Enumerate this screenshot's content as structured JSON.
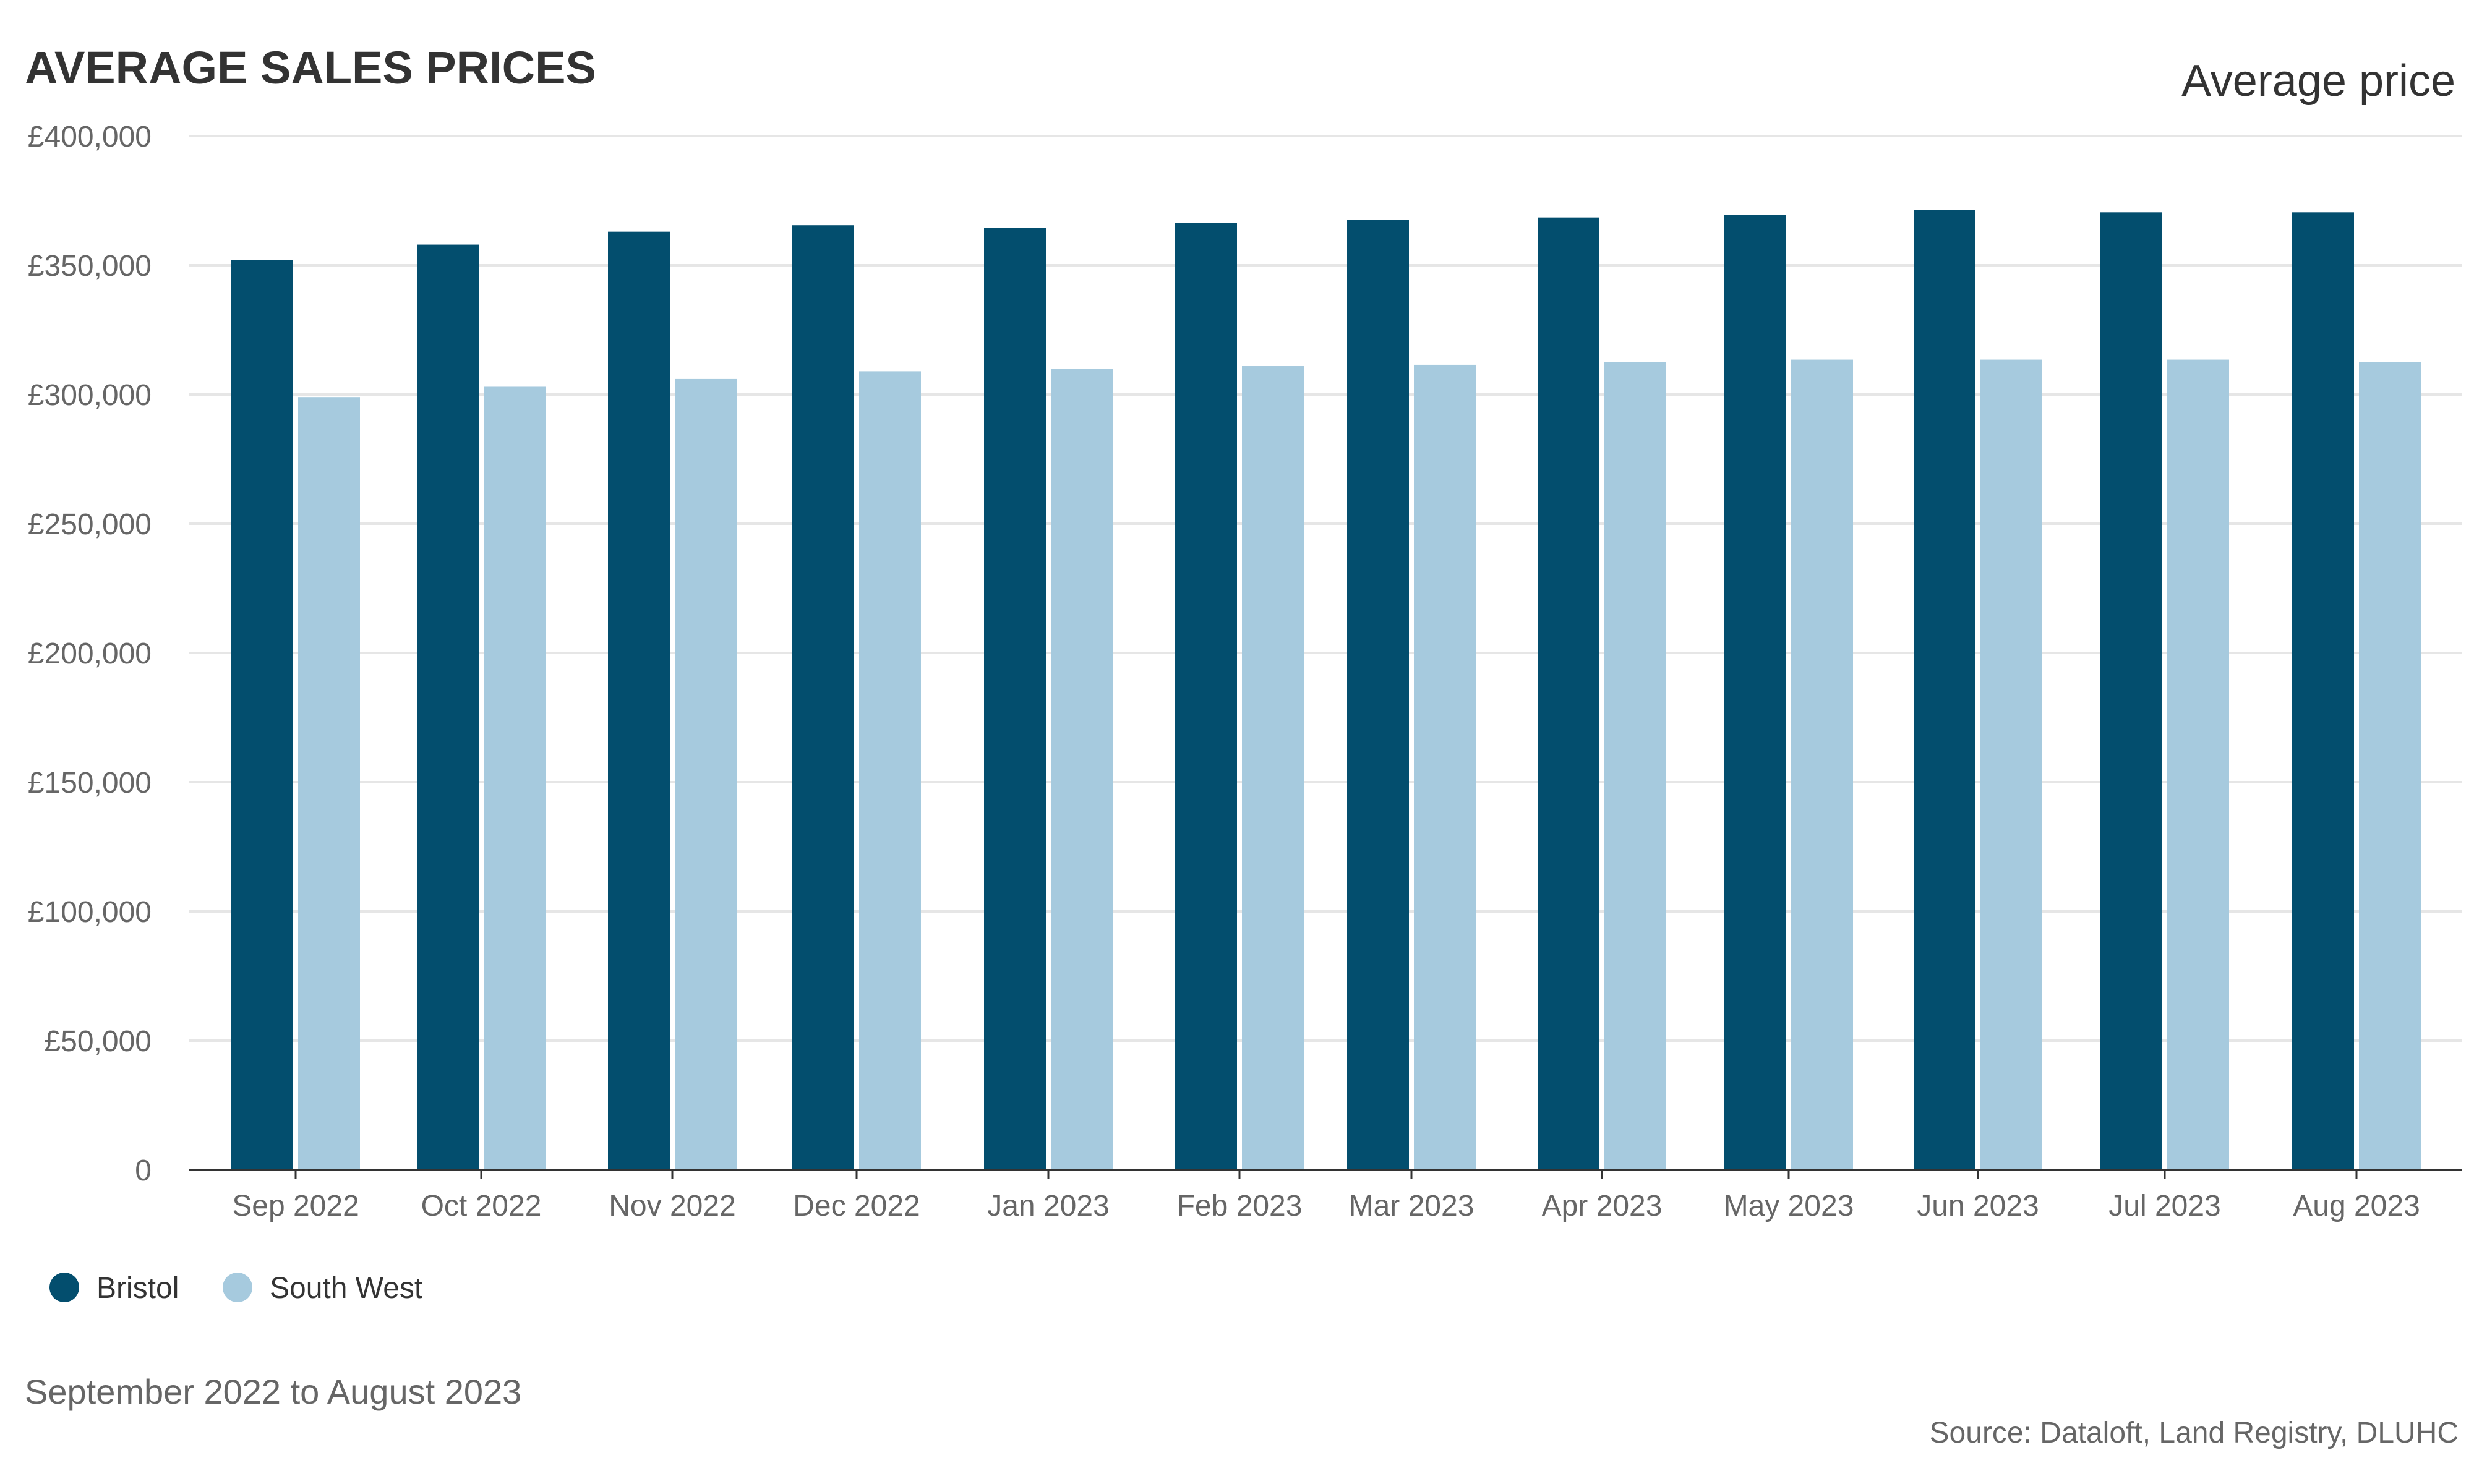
{
  "chart_data": {
    "type": "bar",
    "title": "AVERAGE SALES PRICES",
    "subtitle": "Average price",
    "caption": "September 2022 to August 2023",
    "source": "Source: Dataloft, Land Registry, DLUHC",
    "categories": [
      "Sep 2022",
      "Oct 2022",
      "Nov 2022",
      "Dec 2022",
      "Jan 2023",
      "Feb 2023",
      "Mar 2023",
      "Apr 2023",
      "May 2023",
      "Jun 2023",
      "Jul 2023",
      "Aug 2023"
    ],
    "series": [
      {
        "name": "Bristol",
        "color": "#034e6e",
        "values": [
          352000,
          358000,
          363000,
          365500,
          364500,
          366500,
          367500,
          368500,
          369500,
          371500,
          370500,
          370500
        ]
      },
      {
        "name": "South West",
        "color": "#a6cade",
        "values": [
          299000,
          303000,
          306000,
          309000,
          310000,
          311000,
          311500,
          312500,
          313500,
          313500,
          313500,
          312500
        ]
      }
    ],
    "ylim": [
      0,
      400000
    ],
    "yticks": [
      0,
      50000,
      100000,
      150000,
      200000,
      250000,
      300000,
      350000,
      400000
    ],
    "ytick_labels": [
      "0",
      "£50,000",
      "£100,000",
      "£150,000",
      "£200,000",
      "£250,000",
      "£300,000",
      "£350,000",
      "£400,000"
    ],
    "grid": true,
    "legend": "bottom-left"
  }
}
